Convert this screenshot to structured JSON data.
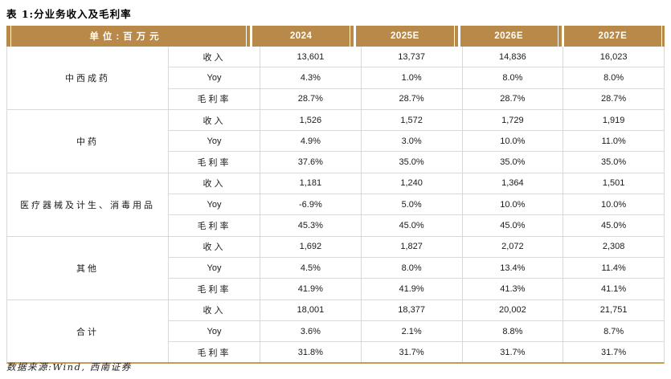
{
  "title": "表 1:分业务收入及毛利率",
  "source": "数据来源:Wind, 西南证券",
  "colors": {
    "header_gold": "#B9894A",
    "bottom_line_gold": "#C79A55",
    "grid_gray": "#D9D9D9",
    "header_text": "#FFFFFF"
  },
  "table": {
    "unit_header": "单位:百万元",
    "year_headers": [
      "2024",
      "2025E",
      "2026E",
      "2027E"
    ],
    "metric_labels": [
      "收入",
      "Yoy",
      "毛利率"
    ],
    "segments": [
      {
        "name": "中西成药",
        "rows": [
          [
            "13,601",
            "13,737",
            "14,836",
            "16,023"
          ],
          [
            "4.3%",
            "1.0%",
            "8.0%",
            "8.0%"
          ],
          [
            "28.7%",
            "28.7%",
            "28.7%",
            "28.7%"
          ]
        ]
      },
      {
        "name": "中药",
        "rows": [
          [
            "1,526",
            "1,572",
            "1,729",
            "1,919"
          ],
          [
            "4.9%",
            "3.0%",
            "10.0%",
            "11.0%"
          ],
          [
            "37.6%",
            "35.0%",
            "35.0%",
            "35.0%"
          ]
        ]
      },
      {
        "name": "医疗器械及计生、消毒用品",
        "rows": [
          [
            "1,181",
            "1,240",
            "1,364",
            "1,501"
          ],
          [
            "-6.9%",
            "5.0%",
            "10.0%",
            "10.0%"
          ],
          [
            "45.3%",
            "45.0%",
            "45.0%",
            "45.0%"
          ]
        ]
      },
      {
        "name": "其他",
        "rows": [
          [
            "1,692",
            "1,827",
            "2,072",
            "2,308"
          ],
          [
            "4.5%",
            "8.0%",
            "13.4%",
            "11.4%"
          ],
          [
            "41.9%",
            "41.9%",
            "41.3%",
            "41.1%"
          ]
        ]
      },
      {
        "name": "合计",
        "rows": [
          [
            "18,001",
            "18,377",
            "20,002",
            "21,751"
          ],
          [
            "3.6%",
            "2.1%",
            "8.8%",
            "8.7%"
          ],
          [
            "31.8%",
            "31.7%",
            "31.7%",
            "31.7%"
          ]
        ]
      }
    ]
  }
}
